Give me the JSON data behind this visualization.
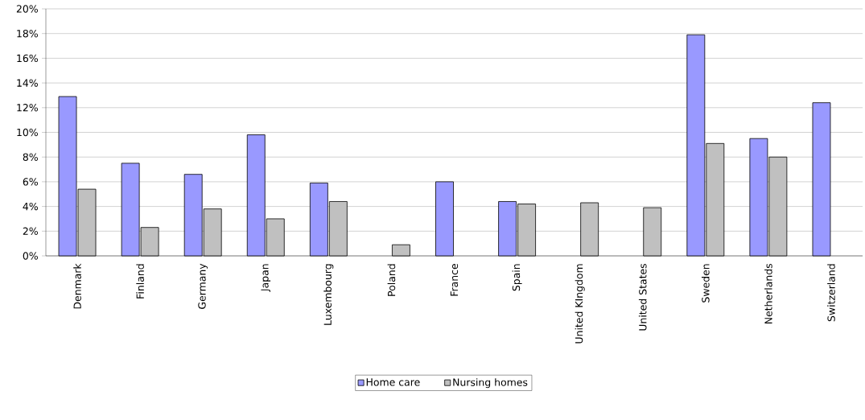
{
  "chart_data": {
    "type": "bar",
    "categories": [
      "Denmark",
      "Finland",
      "Germany",
      "Japan",
      "Luxembourg",
      "Poland",
      "France",
      "Spain",
      "United KIngdom",
      "United States",
      "Sweden",
      "Netherlands",
      "Switzerland"
    ],
    "series": [
      {
        "name": "Home care",
        "color": "#9999ff",
        "values": [
          12.9,
          7.5,
          6.6,
          9.8,
          5.9,
          null,
          6.0,
          4.4,
          null,
          null,
          17.9,
          9.5,
          12.4
        ]
      },
      {
        "name": "Nursing homes",
        "color": "#c0c0c0",
        "values": [
          5.4,
          2.3,
          3.8,
          3.0,
          4.4,
          0.9,
          null,
          4.2,
          4.3,
          3.9,
          9.1,
          8.0,
          null
        ]
      }
    ],
    "ylim": [
      0,
      20
    ],
    "yticks": [
      {
        "value": 0,
        "label": "0%"
      },
      {
        "value": 2,
        "label": "2%"
      },
      {
        "value": 4,
        "label": "4%"
      },
      {
        "value": 6,
        "label": "6%"
      },
      {
        "value": 8,
        "label": "8%"
      },
      {
        "value": 10,
        "label": "10%"
      },
      {
        "value": 12,
        "label": "12%"
      },
      {
        "value": 14,
        "label": "14%"
      },
      {
        "value": 16,
        "label": "16%"
      },
      {
        "value": 18,
        "label": "18%"
      },
      {
        "value": 20,
        "label": "20%"
      }
    ],
    "grid": "y",
    "legend": "bottom"
  }
}
